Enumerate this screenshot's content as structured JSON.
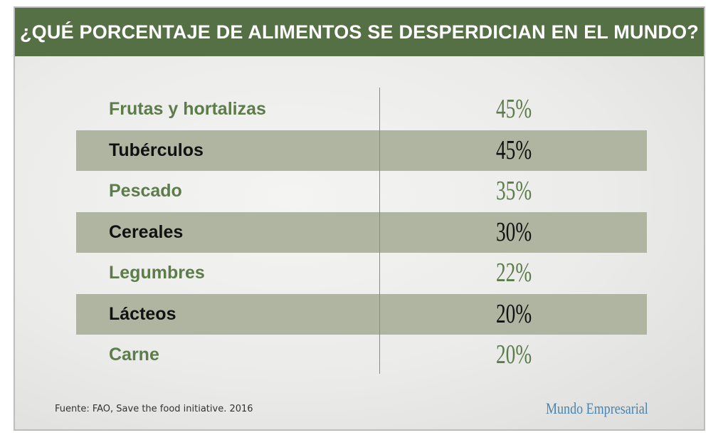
{
  "title": "¿QUÉ PORCENTAJE DE ALIMENTOS SE DESPERDICIAN EN EL MUNDO?",
  "source": "Fuente: FAO, Save the food initiative. 2016",
  "brand": "Mundo Empresarial",
  "colors": {
    "header": "#567045",
    "band": "#afb5a1",
    "green_text": "#5c7c4a",
    "brand": "#4a85ad"
  },
  "chart_data": {
    "type": "table",
    "title": "¿QUÉ PORCENTAJE DE ALIMENTOS SE DESPERDICIAN EN EL MUNDO?",
    "categories": [
      "Frutas y hortalizas",
      "Tubérculos",
      "Pescado",
      "Cereales",
      "Legumbres",
      "Lácteos",
      "Carne"
    ],
    "values": [
      45,
      45,
      35,
      30,
      22,
      20,
      20
    ],
    "value_labels": [
      "45%",
      "45%",
      "35%",
      "30%",
      "22%",
      "20%",
      "20%"
    ],
    "unit": "%"
  }
}
